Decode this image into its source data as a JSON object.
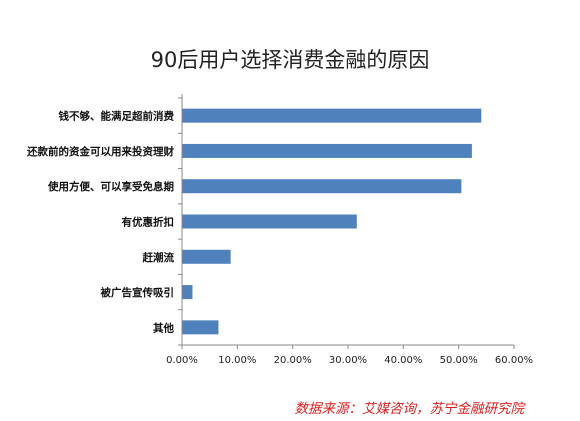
{
  "chart_data": {
    "type": "bar",
    "orientation": "horizontal",
    "title": "90后用户选择消费金融的原因",
    "categories": [
      "钱不够、能满足超前消费",
      "还款前的资金可以用来投资理财",
      "使用方便、可以享受免息期",
      "有优惠折扣",
      "赶潮流",
      "被广告宣传吸引",
      "其他"
    ],
    "values": [
      54.0,
      52.3,
      50.4,
      31.5,
      8.7,
      1.8,
      6.5
    ],
    "x_ticks": [
      "0.00%",
      "10.00%",
      "20.00%",
      "30.00%",
      "40.00%",
      "50.00%",
      "60.00%"
    ],
    "xlim": [
      0,
      60
    ],
    "bar_color": "#4F81BD",
    "grid": false,
    "legend": "none"
  },
  "source_note": "数据来源：艾媒咨询，苏宁金融研究院"
}
